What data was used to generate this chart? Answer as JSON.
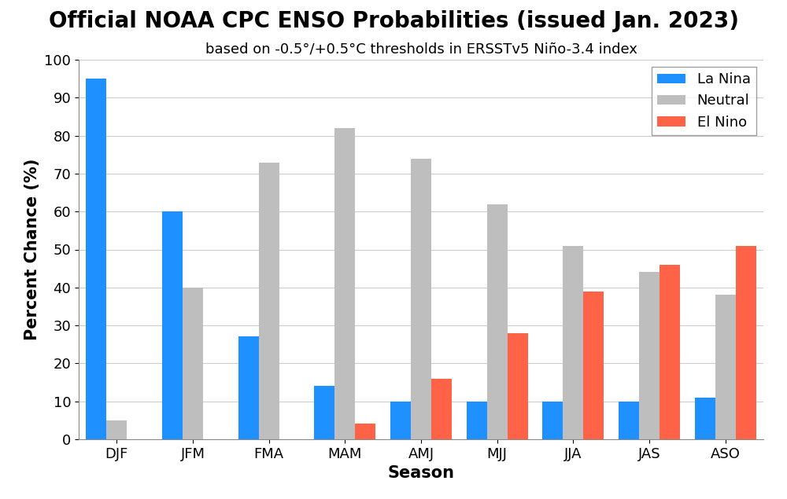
{
  "title": "Official NOAA CPC ENSO Probabilities (issued Jan. 2023)",
  "subtitle": "based on -0.5°/+0.5°C thresholds in ERSSTv5 Niño-3.4 index",
  "xlabel": "Season",
  "ylabel": "Percent Chance (%)",
  "seasons": [
    "DJF",
    "JFM",
    "FMA",
    "MAM",
    "AMJ",
    "MJJ",
    "JJA",
    "JAS",
    "ASO"
  ],
  "la_nina": [
    95,
    60,
    27,
    14,
    10,
    10,
    10,
    10,
    11
  ],
  "neutral": [
    5,
    40,
    73,
    82,
    74,
    62,
    51,
    44,
    38
  ],
  "el_nino": [
    0,
    0,
    0,
    4,
    16,
    28,
    39,
    46,
    51
  ],
  "la_nina_color": "#1E90FF",
  "neutral_color": "#BEBEBE",
  "el_nino_color": "#FF6347",
  "ylim": [
    0,
    100
  ],
  "yticks": [
    0,
    10,
    20,
    30,
    40,
    50,
    60,
    70,
    80,
    90,
    100
  ],
  "legend_labels": [
    "La Nina",
    "Neutral",
    "El Nino"
  ],
  "bar_width": 0.27,
  "title_fontsize": 20,
  "subtitle_fontsize": 13,
  "axis_label_fontsize": 15,
  "tick_fontsize": 13,
  "legend_fontsize": 13,
  "background_color": "#FFFFFF",
  "grid_color": "#CCCCCC"
}
